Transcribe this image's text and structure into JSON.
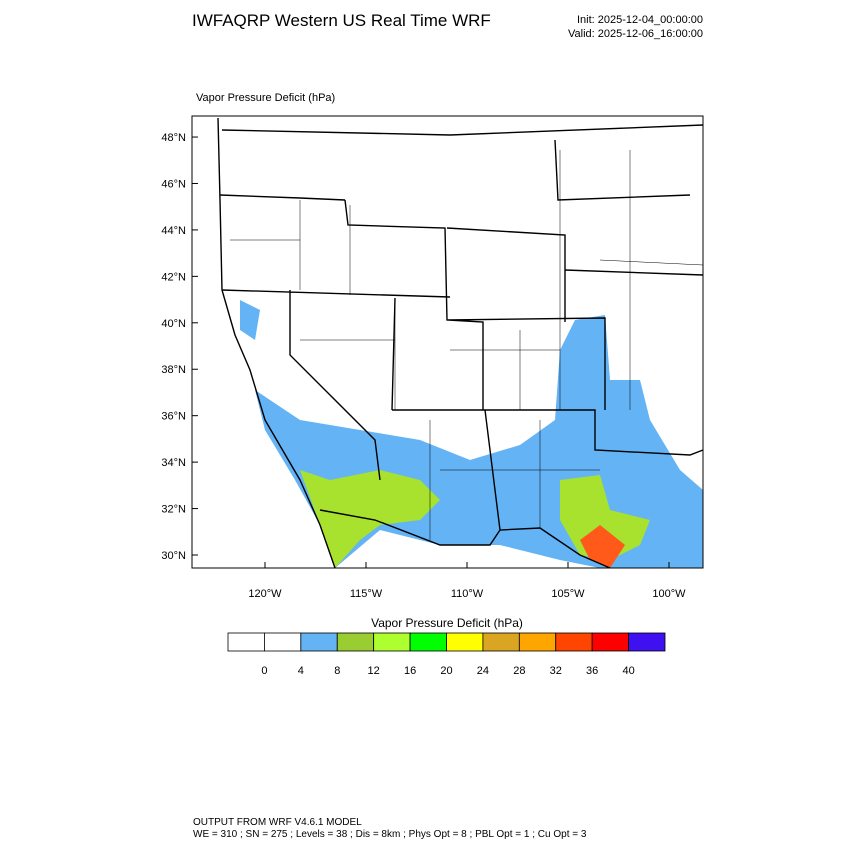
{
  "header": {
    "title": "IWFAQRP Western US Real Time WRF",
    "init": "Init: 2025-12-04_00:00:00",
    "valid": "Valid: 2025-12-06_16:00:00"
  },
  "map": {
    "label": "Vapor Pressure Deficit   (hPa)",
    "lat_ticks": [
      {
        "value": 30,
        "label": "30°N"
      },
      {
        "value": 32,
        "label": "32°N"
      },
      {
        "value": 34,
        "label": "34°N"
      },
      {
        "value": 36,
        "label": "36°N"
      },
      {
        "value": 38,
        "label": "38°N"
      },
      {
        "value": 40,
        "label": "40°N"
      },
      {
        "value": 42,
        "label": "42°N"
      },
      {
        "value": 44,
        "label": "44°N"
      },
      {
        "value": 46,
        "label": "46°N"
      },
      {
        "value": 48,
        "label": "48°N"
      }
    ],
    "lon_ticks": [
      {
        "value": -120,
        "label": "120°W"
      },
      {
        "value": -115,
        "label": "115°W"
      },
      {
        "value": -110,
        "label": "110°W"
      },
      {
        "value": -105,
        "label": "105°W"
      },
      {
        "value": -100,
        "label": "100°W"
      }
    ]
  },
  "colorbar": {
    "title": "Vapor Pressure Deficit  (hPa)",
    "colors": [
      "#ffffff",
      "#ffffff",
      "#63b3f5",
      "#9acd32",
      "#adff2f",
      "#00ff00",
      "#ffff00",
      "#daa520",
      "#ffa500",
      "#ff4500",
      "#ff0000",
      "#3f10f0"
    ],
    "labels": [
      0,
      4,
      8,
      12,
      16,
      20,
      24,
      28,
      32,
      36,
      40
    ]
  },
  "footer": {
    "line1": "OUTPUT FROM WRF V4.6.1 MODEL",
    "line2": "WE = 310 ; SN = 275 ; Levels = 38 ; Dis = 8km ; Phys Opt = 8 ; PBL Opt = 1 ; Cu Opt = 3"
  }
}
